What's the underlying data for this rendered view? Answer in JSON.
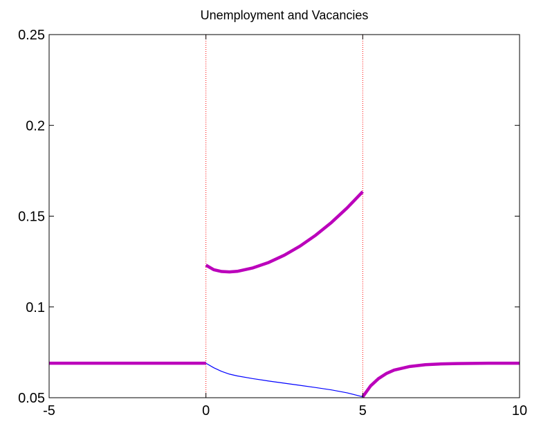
{
  "chart_data": {
    "type": "line",
    "title": "Unemployment and Vacancies",
    "xlabel": "",
    "ylabel": "",
    "xlim": [
      -5,
      10
    ],
    "ylim": [
      0.05,
      0.25
    ],
    "xticks": [
      "-5",
      "0",
      "5",
      "10"
    ],
    "yticks": [
      "0.05",
      "0.1",
      "0.15",
      "0.2",
      "0.25"
    ],
    "grid": false,
    "vlines": [
      0,
      5
    ],
    "colors": {
      "thick": "#BB00BB",
      "thin": "#0000FF",
      "vline": "#FF0000",
      "axes": "#000000"
    },
    "series": [
      {
        "style": "thick",
        "segments": [
          {
            "x": [
              -5,
              0
            ],
            "y": [
              0.069,
              0.069
            ]
          },
          {
            "x": [
              0,
              0.25,
              0.5,
              0.75,
              1,
              1.5,
              2,
              2.5,
              3,
              3.5,
              4,
              4.5,
              5
            ],
            "y": [
              0.123,
              0.1205,
              0.1195,
              0.1193,
              0.1196,
              0.1215,
              0.1245,
              0.1285,
              0.1335,
              0.1395,
              0.1465,
              0.1545,
              0.1635
            ]
          },
          {
            "x": [
              5,
              5.25,
              5.5,
              5.75,
              6,
              6.5,
              7,
              7.5,
              8,
              9,
              10
            ],
            "y": [
              0.0505,
              0.0565,
              0.0605,
              0.0633,
              0.0652,
              0.0672,
              0.0682,
              0.0686,
              0.0688,
              0.069,
              0.069
            ]
          }
        ]
      },
      {
        "style": "thin",
        "segments": [
          {
            "x": [
              0,
              0.25,
              0.5,
              0.75,
              1,
              1.5,
              2,
              2.5,
              3,
              3.5,
              4,
              4.5,
              5
            ],
            "y": [
              0.069,
              0.0665,
              0.0645,
              0.063,
              0.062,
              0.0605,
              0.0592,
              0.058,
              0.0568,
              0.0556,
              0.0543,
              0.0527,
              0.0505
            ]
          }
        ]
      }
    ]
  }
}
